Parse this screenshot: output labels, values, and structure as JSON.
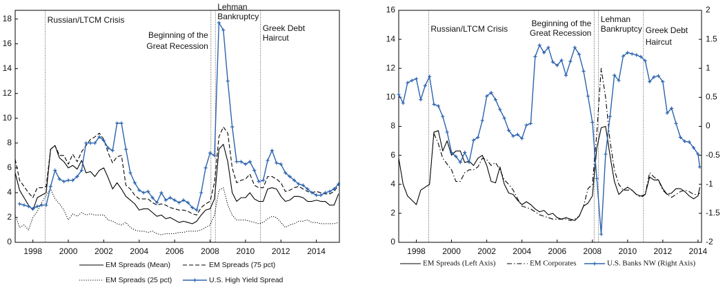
{
  "chart_data": [
    {
      "type": "line",
      "x": [
        1997,
        1997.25,
        1997.5,
        1997.75,
        1998,
        1998.25,
        1998.5,
        1998.75,
        1999,
        1999.25,
        1999.5,
        1999.75,
        2000,
        2000.25,
        2000.5,
        2000.75,
        2001,
        2001.25,
        2001.5,
        2001.75,
        2002,
        2002.25,
        2002.5,
        2002.75,
        2003,
        2003.25,
        2003.5,
        2003.75,
        2004,
        2004.25,
        2004.5,
        2004.75,
        2005,
        2005.25,
        2005.5,
        2005.75,
        2006,
        2006.25,
        2006.5,
        2006.75,
        2007,
        2007.25,
        2007.5,
        2007.75,
        2008,
        2008.25,
        2008.5,
        2008.75,
        2009,
        2009.25,
        2009.5,
        2009.75,
        2010,
        2010.25,
        2010.5,
        2010.75,
        2011,
        2011.25,
        2011.5,
        2011.75,
        2012,
        2012.25,
        2012.5,
        2012.75,
        2013,
        2013.25,
        2013.5,
        2013.75,
        2014,
        2014.25,
        2014.5,
        2014.75,
        2015,
        2015.25
      ],
      "xlim": [
        1997,
        2015.3
      ],
      "xticks": [
        1998,
        2000,
        2002,
        2004,
        2006,
        2008,
        2010,
        2012,
        2014
      ],
      "ylim": [
        0,
        18.7
      ],
      "yticks": [
        0,
        2,
        4,
        6,
        8,
        10,
        12,
        14,
        16,
        18
      ],
      "grid": false,
      "annotations": [
        {
          "x": 1998.7,
          "lines": [
            "Russian/LTCM Crisis"
          ]
        },
        {
          "x": 2008.05,
          "lines": [
            "Beginning of the",
            "Great Recession"
          ]
        },
        {
          "x": 2008.3,
          "lines": [
            "Lehman",
            "Bankruptcy"
          ]
        },
        {
          "x": 2010.85,
          "lines": [
            "Greek Debt",
            "Haircut"
          ]
        }
      ],
      "series": [
        {
          "name": "EM Spreads (Mean)",
          "color": "#000000",
          "style": "solid",
          "values": [
            5.6,
            4.2,
            3.6,
            3.0,
            2.6,
            3.6,
            3.8,
            4.0,
            7.5,
            7.8,
            6.8,
            6.5,
            6.0,
            6.2,
            5.9,
            6.6,
            5.6,
            5.7,
            5.3,
            5.8,
            6.0,
            5.2,
            4.3,
            4.8,
            4.3,
            3.7,
            3.4,
            3.1,
            2.6,
            2.7,
            2.7,
            2.4,
            2.1,
            2.2,
            1.9,
            2.0,
            1.8,
            1.6,
            1.7,
            1.6,
            1.5,
            1.7,
            2.2,
            2.6,
            2.7,
            3.5,
            7.5,
            7.9,
            6.5,
            4.0,
            3.3,
            3.6,
            3.6,
            4.0,
            3.5,
            3.3,
            3.3,
            4.3,
            4.4,
            4.3,
            3.7,
            3.3,
            3.4,
            3.7,
            3.7,
            3.6,
            3.3,
            3.3,
            3.4,
            3.3,
            3.3,
            3.0,
            3.0,
            3.9
          ]
        },
        {
          "name": "EM Spreads (75 pct)",
          "color": "#000000",
          "style": "dashed",
          "values": [
            6.7,
            5.0,
            4.5,
            4.0,
            3.6,
            4.4,
            4.4,
            4.5,
            7.5,
            7.8,
            7.0,
            7.0,
            6.3,
            7.1,
            6.5,
            7.3,
            7.8,
            8.3,
            8.5,
            8.8,
            8.3,
            7.2,
            6.4,
            6.9,
            7.0,
            4.6,
            4.3,
            3.8,
            3.5,
            3.5,
            3.5,
            3.2,
            3.0,
            3.1,
            3.0,
            2.8,
            2.7,
            2.6,
            2.6,
            2.5,
            2.3,
            2.2,
            2.8,
            3.1,
            3.3,
            4.8,
            8.5,
            9.3,
            8.8,
            6.0,
            4.8,
            5.0,
            5.1,
            5.5,
            4.6,
            4.4,
            4.4,
            5.3,
            5.3,
            5.1,
            4.8,
            4.1,
            4.2,
            4.4,
            4.5,
            4.3,
            4.1,
            4.0,
            4.1,
            4.0,
            3.9,
            3.9,
            4.1,
            4.6
          ]
        },
        {
          "name": "EM Spreads (25 pct)",
          "color": "#000000",
          "style": "dotted",
          "values": [
            2.2,
            1.2,
            1.4,
            1.0,
            2.0,
            2.5,
            3.2,
            3.8,
            4.3,
            3.5,
            3.1,
            2.6,
            1.8,
            2.3,
            2.1,
            2.4,
            2.2,
            2.3,
            2.2,
            2.2,
            2.2,
            1.8,
            1.7,
            1.5,
            1.4,
            1.6,
            1.2,
            1.0,
            0.9,
            0.9,
            0.8,
            0.9,
            0.7,
            0.6,
            0.7,
            0.7,
            0.7,
            0.8,
            0.8,
            0.9,
            0.9,
            0.9,
            1.0,
            1.2,
            1.4,
            2.2,
            4.2,
            4.4,
            3.0,
            2.2,
            1.8,
            1.8,
            1.8,
            1.7,
            1.6,
            1.5,
            1.6,
            1.9,
            2.1,
            2.0,
            1.6,
            1.2,
            1.4,
            1.5,
            1.7,
            1.7,
            1.8,
            1.6,
            1.6,
            1.5,
            1.5,
            1.5,
            1.5,
            1.6
          ]
        },
        {
          "name": "U.S. High Yield Spread",
          "color": "#2a62ad",
          "style": "solid",
          "marker": "plus",
          "values": [
            null,
            3.1,
            3.0,
            2.9,
            2.7,
            2.9,
            3.0,
            3.0,
            4.5,
            5.8,
            5.1,
            4.9,
            5.0,
            5.0,
            5.3,
            5.8,
            8.0,
            8.0,
            8.0,
            8.5,
            8.2,
            7.6,
            7.4,
            9.6,
            9.6,
            7.5,
            5.6,
            4.8,
            4.2,
            4.0,
            4.1,
            3.6,
            3.2,
            4.0,
            3.4,
            3.6,
            3.4,
            3.2,
            3.4,
            3.2,
            2.8,
            2.6,
            4.0,
            6.0,
            7.2,
            7.0,
            17.7,
            17.1,
            13.0,
            9.3,
            6.5,
            6.5,
            6.3,
            6.5,
            5.8,
            4.9,
            5.0,
            6.6,
            7.4,
            6.4,
            6.3,
            5.6,
            5.3,
            5.0,
            4.7,
            4.6,
            4.3,
            4.0,
            3.8,
            3.8,
            4.0,
            4.1,
            4.3,
            4.7
          ]
        }
      ]
    },
    {
      "type": "line",
      "x": [
        1997,
        1997.25,
        1997.5,
        1997.75,
        1998,
        1998.25,
        1998.5,
        1998.75,
        1999,
        1999.25,
        1999.5,
        1999.75,
        2000,
        2000.25,
        2000.5,
        2000.75,
        2001,
        2001.25,
        2001.5,
        2001.75,
        2002,
        2002.25,
        2002.5,
        2002.75,
        2003,
        2003.25,
        2003.5,
        2003.75,
        2004,
        2004.25,
        2004.5,
        2004.75,
        2005,
        2005.25,
        2005.5,
        2005.75,
        2006,
        2006.25,
        2006.5,
        2006.75,
        2007,
        2007.25,
        2007.5,
        2007.75,
        2008,
        2008.25,
        2008.5,
        2008.75,
        2009,
        2009.25,
        2009.5,
        2009.75,
        2010,
        2010.25,
        2010.5,
        2010.75,
        2011,
        2011.25,
        2011.5,
        2011.75,
        2012,
        2012.25,
        2012.5,
        2012.75,
        2013,
        2013.25,
        2013.5,
        2013.75,
        2014,
        2014.1
      ],
      "xlim": [
        1997,
        2014.2
      ],
      "xticks": [
        1998,
        2000,
        2002,
        2004,
        2006,
        2008,
        2010,
        2012,
        2014
      ],
      "ylim": [
        0,
        16
      ],
      "yticks": [
        0,
        2,
        4,
        6,
        8,
        10,
        12,
        14,
        16
      ],
      "y2lim": [
        -2,
        2
      ],
      "y2ticks": [
        -2,
        -1.5,
        -1,
        -0.5,
        0,
        0.5,
        1,
        1.5,
        2
      ],
      "grid": false,
      "annotations": [
        {
          "x": 1998.7,
          "lines": [
            "Russian/LTCM Crisis"
          ]
        },
        {
          "x": 2008.1,
          "lines": [
            "Beginning of the",
            "Great Recession"
          ]
        },
        {
          "x": 2008.35,
          "lines": [
            "Lehman",
            "Bankruptcy"
          ]
        },
        {
          "x": 2010.9,
          "lines": [
            "Greek Debt",
            "Haircut"
          ]
        }
      ],
      "series": [
        {
          "name": "EM Spreads (Left Axis)",
          "color": "#000000",
          "style": "solid",
          "values": [
            5.8,
            4.0,
            3.2,
            2.9,
            2.6,
            3.6,
            3.8,
            4.0,
            7.6,
            7.7,
            6.3,
            7.0,
            6.0,
            6.3,
            6.3,
            5.5,
            5.6,
            5.3,
            5.8,
            6.0,
            5.3,
            4.2,
            4.1,
            5.2,
            4.0,
            3.4,
            3.3,
            2.9,
            2.6,
            2.8,
            2.6,
            2.3,
            2.1,
            2.2,
            1.9,
            2.0,
            1.7,
            1.6,
            1.7,
            1.6,
            1.5,
            1.8,
            2.5,
            2.7,
            3.2,
            6.5,
            7.9,
            8.0,
            6.0,
            4.2,
            3.3,
            3.6,
            3.8,
            3.6,
            3.3,
            3.2,
            3.3,
            4.5,
            4.3,
            4.3,
            3.7,
            3.3,
            3.4,
            3.7,
            3.7,
            3.5,
            3.2,
            3.0,
            3.2,
            3.8
          ]
        },
        {
          "name": "EM Corporates",
          "color": "#000000",
          "style": "dashdot",
          "values": [
            null,
            null,
            null,
            null,
            null,
            null,
            null,
            null,
            7.5,
            6.8,
            5.8,
            5.4,
            5.0,
            4.2,
            4.2,
            4.8,
            5.0,
            5.0,
            5.2,
            5.8,
            5.7,
            5.3,
            5.5,
            5.0,
            4.3,
            4.0,
            3.6,
            3.0,
            2.5,
            2.4,
            2.3,
            2.1,
            1.9,
            1.8,
            1.7,
            1.6,
            1.6,
            1.6,
            1.6,
            1.5,
            1.6,
            1.8,
            2.5,
            3.7,
            4.0,
            7.5,
            12.0,
            10.0,
            7.0,
            5.0,
            4.0,
            3.6,
            3.6,
            3.6,
            3.3,
            3.1,
            3.3,
            4.8,
            4.5,
            4.3,
            3.6,
            3.3,
            3.1,
            3.3,
            3.5,
            3.6,
            3.5,
            3.3,
            3.3,
            3.4
          ]
        },
        {
          "name": "U.S. Banks NW (Right Axis)",
          "color": "#2a62ad",
          "style": "solid",
          "marker": "plus",
          "axis": "y2",
          "values": [
            0.55,
            0.4,
            0.75,
            0.79,
            0.82,
            0.46,
            0.7,
            0.86,
            0.38,
            0.35,
            0.17,
            -0.1,
            -0.45,
            -0.52,
            -0.62,
            -0.45,
            -0.62,
            -0.24,
            -0.19,
            0.1,
            0.52,
            0.58,
            0.46,
            0.29,
            0.14,
            -0.07,
            -0.17,
            -0.14,
            -0.21,
            0.02,
            0.05,
            1.2,
            1.4,
            1.27,
            1.36,
            1.11,
            1.05,
            1.14,
            0.88,
            1.12,
            1.36,
            1.24,
            0.95,
            0.52,
            0.07,
            -0.9,
            -1.86,
            -0.48,
            0.17,
            0.88,
            0.79,
            1.21,
            1.27,
            1.25,
            1.23,
            1.2,
            1.13,
            0.77,
            0.85,
            0.87,
            0.77,
            0.23,
            0.31,
            0.05,
            -0.19,
            -0.26,
            -0.27,
            -0.37,
            -0.48,
            -0.7
          ]
        }
      ]
    }
  ]
}
